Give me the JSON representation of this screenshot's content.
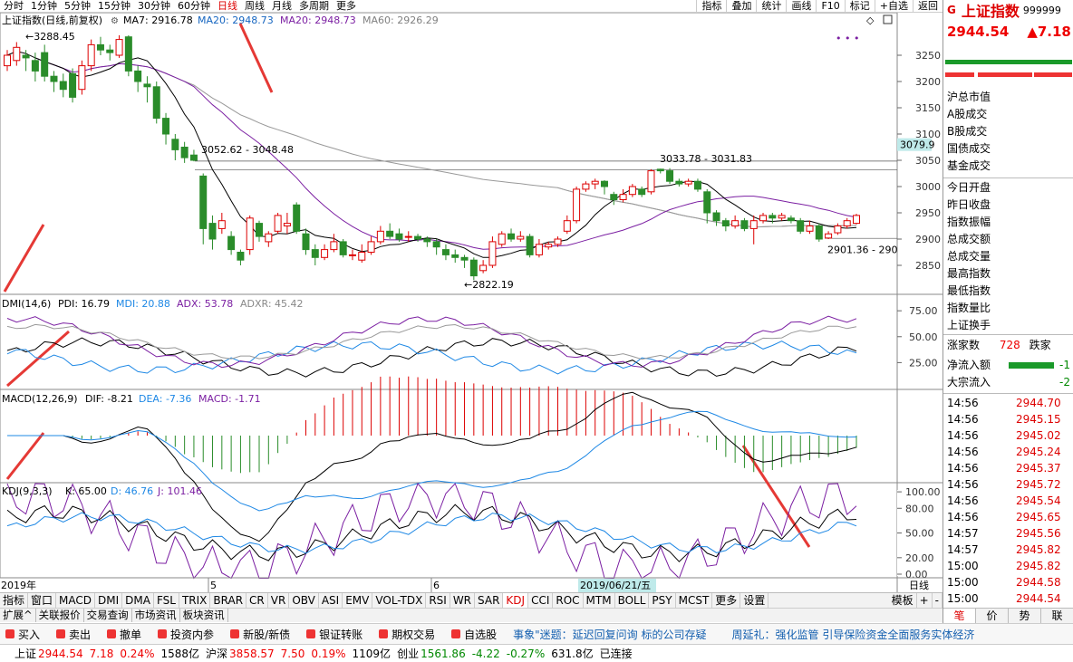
{
  "toolbar": {
    "periods": [
      "分时",
      "1分钟",
      "5分钟",
      "15分钟",
      "30分钟",
      "60分钟",
      "日线",
      "周线",
      "月线",
      "多周期",
      "更多"
    ],
    "right_buttons": [
      "指标",
      "叠加",
      "统计",
      "画线",
      "F10",
      "标记",
      "+自选",
      "返回"
    ]
  },
  "chart": {
    "title": "上证指数(日线,前复权)",
    "ma": [
      {
        "label": "MA7: 2916.78",
        "color": "#000000"
      },
      {
        "label": "MA20: 2948.73",
        "color": "#1565c0"
      },
      {
        "label": "MA20: 2948.73",
        "color": "#7b1fa2"
      },
      {
        "label": "MA60: 2926.29",
        "color": "#808080"
      }
    ],
    "annotations": {
      "high": "3288.45",
      "range1": "3052.62 - 3048.48",
      "range2": "3033.78 - 3031.83",
      "low": "2822.19",
      "range3": "2901.36 - 290"
    },
    "price_axis": [
      "3250",
      "3200",
      "3150",
      "3100",
      "3050",
      "3000",
      "2950",
      "2900",
      "2850"
    ],
    "price_tag": "3079.9",
    "dmi": {
      "title": "DMI(14,6)",
      "pdi": "PDI: 16.79",
      "mdi": "MDI: 20.88",
      "adx": "ADX: 53.78",
      "adxr": "ADXR: 45.42",
      "axis": [
        "75.00",
        "50.00",
        "25.00"
      ]
    },
    "macd": {
      "title": "MACD(12,26,9)",
      "dif": "DIF: -8.21",
      "dea": "DEA: -7.36",
      "macd": "MACD: -1.71"
    },
    "kdj": {
      "title": "KDJ(9,3,3)",
      "k": "K: 65.00",
      "d": "D: 46.76",
      "j": "J: 101.46",
      "axis": [
        "100.00",
        "80.00",
        "50.00",
        "20.00",
        "0.00"
      ]
    },
    "xaxis": {
      "year": "2019年",
      "m5": "5",
      "m6": "6",
      "cursor": "2019/06/21/五",
      "period": "日线"
    }
  },
  "chart_data": {
    "type": "candlestick",
    "ylim": [
      2800,
      3300
    ],
    "candles": [
      [
        3230,
        3250,
        3220,
        3260
      ],
      [
        3240,
        3265,
        3230,
        3275
      ],
      [
        3250,
        3245,
        3220,
        3260
      ],
      [
        3240,
        3220,
        3200,
        3255
      ],
      [
        3255,
        3210,
        3200,
        3270
      ],
      [
        3210,
        3200,
        3180,
        3220
      ],
      [
        3200,
        3185,
        3170,
        3215
      ],
      [
        3215,
        3170,
        3160,
        3225
      ],
      [
        3185,
        3230,
        3175,
        3240
      ],
      [
        3230,
        3270,
        3220,
        3280
      ],
      [
        3270,
        3260,
        3250,
        3285
      ],
      [
        3260,
        3255,
        3240,
        3270
      ],
      [
        3250,
        3280,
        3245,
        3288
      ],
      [
        3285,
        3220,
        3210,
        3288
      ],
      [
        3220,
        3200,
        3180,
        3230
      ],
      [
        3195,
        3190,
        3160,
        3210
      ],
      [
        3190,
        3130,
        3120,
        3200
      ],
      [
        3130,
        3100,
        3080,
        3140
      ],
      [
        3090,
        3070,
        3050,
        3100
      ],
      [
        3075,
        3055,
        3045,
        3085
      ],
      [
        3060,
        3050,
        3048,
        3070
      ],
      [
        3020,
        2920,
        2890,
        3025
      ],
      [
        2930,
        2900,
        2880,
        2945
      ],
      [
        2920,
        2935,
        2910,
        2950
      ],
      [
        2905,
        2880,
        2870,
        2915
      ],
      [
        2875,
        2860,
        2850,
        2880
      ],
      [
        2880,
        2940,
        2870,
        2945
      ],
      [
        2930,
        2905,
        2895,
        2935
      ],
      [
        2895,
        2910,
        2885,
        2915
      ],
      [
        2915,
        2945,
        2910,
        2950
      ],
      [
        2925,
        2930,
        2910,
        2950
      ],
      [
        2965,
        2915,
        2910,
        2970
      ],
      [
        2910,
        2880,
        2870,
        2920
      ],
      [
        2880,
        2865,
        2850,
        2890
      ],
      [
        2865,
        2880,
        2860,
        2890
      ],
      [
        2880,
        2895,
        2875,
        2910
      ],
      [
        2895,
        2870,
        2865,
        2900
      ],
      [
        2870,
        2870,
        2860,
        2880
      ],
      [
        2860,
        2875,
        2855,
        2890
      ],
      [
        2875,
        2895,
        2870,
        2905
      ],
      [
        2895,
        2915,
        2890,
        2925
      ],
      [
        2915,
        2905,
        2900,
        2930
      ],
      [
        2910,
        2900,
        2895,
        2920
      ],
      [
        2905,
        2905,
        2895,
        2915
      ],
      [
        2905,
        2900,
        2895,
        2910
      ],
      [
        2900,
        2895,
        2885,
        2905
      ],
      [
        2895,
        2885,
        2870,
        2900
      ],
      [
        2880,
        2870,
        2860,
        2890
      ],
      [
        2870,
        2865,
        2855,
        2880
      ],
      [
        2865,
        2860,
        2845,
        2870
      ],
      [
        2860,
        2830,
        2822,
        2865
      ],
      [
        2840,
        2850,
        2835,
        2860
      ],
      [
        2850,
        2895,
        2845,
        2905
      ],
      [
        2890,
        2910,
        2885,
        2915
      ],
      [
        2910,
        2900,
        2895,
        2920
      ],
      [
        2900,
        2905,
        2895,
        2915
      ],
      [
        2905,
        2870,
        2865,
        2910
      ],
      [
        2870,
        2890,
        2865,
        2900
      ],
      [
        2885,
        2890,
        2880,
        2895
      ],
      [
        2890,
        2900,
        2885,
        2905
      ],
      [
        2915,
        2935,
        2910,
        2945
      ],
      [
        2935,
        2995,
        2930,
        3000
      ],
      [
        2995,
        3005,
        2990,
        3010
      ],
      [
        3005,
        3010,
        2995,
        3015
      ],
      [
        3010,
        3000,
        2985,
        3012
      ],
      [
        2985,
        2975,
        2965,
        2990
      ],
      [
        2975,
        2985,
        2970,
        2995
      ],
      [
        2985,
        3000,
        2980,
        3005
      ],
      [
        2995,
        2985,
        2980,
        3000
      ],
      [
        2990,
        3030,
        2985,
        3033
      ],
      [
        3033,
        3030,
        3025,
        3034
      ],
      [
        3030,
        3010,
        3005,
        3035
      ],
      [
        3010,
        3005,
        3000,
        3015
      ],
      [
        3005,
        3010,
        3000,
        3015
      ],
      [
        3010,
        2995,
        2990,
        3015
      ],
      [
        2990,
        2950,
        2930,
        2995
      ],
      [
        2950,
        2935,
        2925,
        2955
      ],
      [
        2935,
        2925,
        2915,
        2940
      ],
      [
        2925,
        2935,
        2920,
        2945
      ],
      [
        2935,
        2920,
        2915,
        2940
      ],
      [
        2920,
        2935,
        2890,
        2945
      ],
      [
        2935,
        2945,
        2930,
        2950
      ],
      [
        2945,
        2940,
        2930,
        2950
      ],
      [
        2940,
        2945,
        2935,
        2950
      ],
      [
        2940,
        2935,
        2930,
        2945
      ],
      [
        2935,
        2915,
        2910,
        2940
      ],
      [
        2915,
        2925,
        2910,
        2935
      ],
      [
        2925,
        2900,
        2895,
        2930
      ],
      [
        2902,
        2910,
        2900,
        2915
      ],
      [
        2912,
        2925,
        2908,
        2930
      ],
      [
        2925,
        2935,
        2920,
        2940
      ],
      [
        2930,
        2945,
        2928,
        2948
      ]
    ],
    "dmi": {
      "ylim": [
        0,
        90
      ],
      "pdi": 16.79,
      "mdi": 20.88,
      "adx": 53.78,
      "adxr": 45.42
    },
    "macd": {
      "dif": -8.21,
      "dea": -7.36,
      "macd": -1.71
    },
    "kdj": {
      "ylim": [
        0,
        110
      ],
      "k": 65.0,
      "d": 46.76,
      "j": 101.46
    }
  },
  "indicator_tabs": [
    "指标",
    "窗口",
    "MACD",
    "DMI",
    "DMA",
    "FSL",
    "TRIX",
    "BRAR",
    "CR",
    "VR",
    "OBV",
    "ASI",
    "EMV",
    "VOL-TDX",
    "RSI",
    "WR",
    "SAR",
    "KDJ",
    "CCI",
    "ROC",
    "MTM",
    "BOLL",
    "PSY",
    "MCST",
    "更多",
    "设置"
  ],
  "indicator_active": "KDJ",
  "template_tabs": [
    "模板",
    "+",
    "-"
  ],
  "subtabs": [
    "扩展^",
    "关联报价",
    "交易查询",
    "市场资讯",
    "板块资讯"
  ],
  "trade": {
    "items": [
      "买入",
      "卖出",
      "撤单",
      "投资内参",
      "新股/新债",
      "银证转账",
      "期权交易",
      "自选股"
    ],
    "ticker": "事象\"迷题：延迟回复问询 标的公司存疑",
    "ticker2": "周延礼：强化监管 引导保险资金全面服务实体经济"
  },
  "status": {
    "sh_label": "上证",
    "sh_price": "2944.54",
    "sh_chg": "7.18",
    "sh_pct": "0.24%",
    "sh_vol": "1588亿",
    "hs_label": "沪深",
    "hs_price": "3858.57",
    "hs_chg": "7.50",
    "hs_pct": "0.19%",
    "hs_vol": "1109亿",
    "cy_label": "创业",
    "cy_price": "1561.86",
    "cy_chg": "-4.22",
    "cy_pct": "-0.27%",
    "cy_vol": "631.8亿",
    "conn": "已连接"
  },
  "side": {
    "logo": "G",
    "name": "上证指数",
    "code": "999999",
    "price": "2944.54",
    "change": "▲7.18",
    "labels": [
      "沪总市值",
      "A股成交",
      "B股成交",
      "国债成交",
      "基金成交",
      "今日开盘",
      "昨日收盘",
      "指数振幅",
      "总成交额",
      "总成交量",
      "最高指数",
      "最低指数",
      "指数量比",
      "上证换手"
    ],
    "rise_label": "涨家数",
    "rise_val": "728",
    "fall_label": "跌家",
    "inflow_label": "净流入额",
    "inflow_val": "-1",
    "block_label": "大宗流入",
    "block_val": "-2",
    "ticks": [
      [
        "14:56",
        "2944.70"
      ],
      [
        "14:56",
        "2945.15"
      ],
      [
        "14:56",
        "2945.02"
      ],
      [
        "14:56",
        "2945.24"
      ],
      [
        "14:56",
        "2945.37"
      ],
      [
        "14:56",
        "2945.72"
      ],
      [
        "14:56",
        "2945.54"
      ],
      [
        "14:56",
        "2945.65"
      ],
      [
        "14:57",
        "2945.56"
      ],
      [
        "14:57",
        "2945.82"
      ],
      [
        "15:00",
        "2945.82"
      ],
      [
        "15:00",
        "2944.58"
      ],
      [
        "15:00",
        "2944.54"
      ]
    ],
    "bottom_tabs": [
      "笔",
      "价",
      "势",
      "联"
    ]
  }
}
